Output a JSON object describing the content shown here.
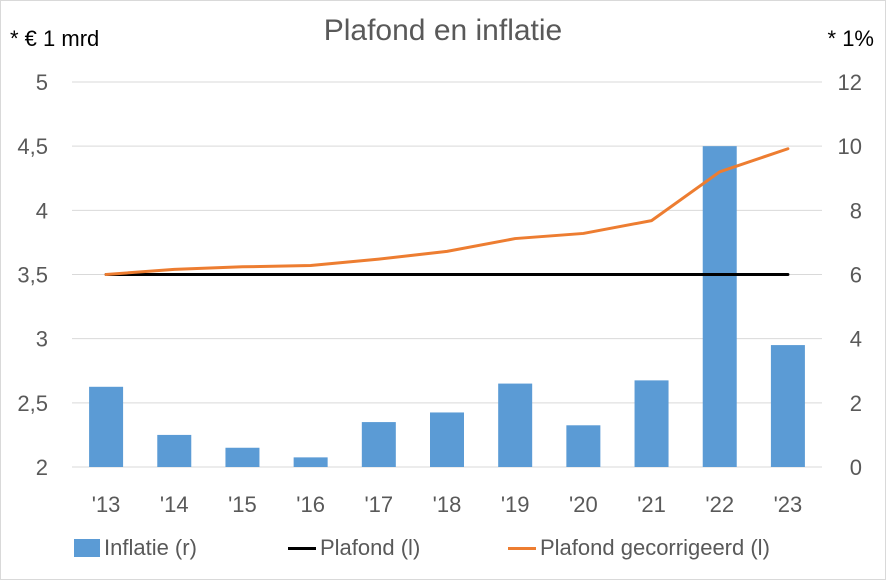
{
  "chart_data": {
    "type": "bar",
    "title": "Plafond en inflatie",
    "left_axis_label": "* € 1 mrd",
    "right_axis_label": "* 1%",
    "categories": [
      "'13",
      "'14",
      "'15",
      "'16",
      "'17",
      "'18",
      "'19",
      "'20",
      "'21",
      "'22",
      "'23"
    ],
    "left_axis": {
      "ylim": [
        2,
        5
      ],
      "ticks": [
        "2",
        "2,5",
        "3",
        "3,5",
        "4",
        "4,5",
        "5"
      ]
    },
    "right_axis": {
      "ylim": [
        0,
        12
      ],
      "ticks": [
        "0",
        "2",
        "4",
        "6",
        "8",
        "10",
        "12"
      ]
    },
    "grid": true,
    "legend_position": "bottom",
    "series": [
      {
        "name": "Inflatie (r)",
        "type": "bar",
        "axis": "right",
        "color": "#5b9bd5",
        "values": [
          2.5,
          1.0,
          0.6,
          0.3,
          1.4,
          1.7,
          2.6,
          1.3,
          2.7,
          10.0,
          3.8
        ]
      },
      {
        "name": "Plafond (l)",
        "type": "line",
        "axis": "left",
        "color": "#000000",
        "values": [
          3.5,
          3.5,
          3.5,
          3.5,
          3.5,
          3.5,
          3.5,
          3.5,
          3.5,
          3.5,
          3.5
        ]
      },
      {
        "name": "Plafond gecorrigeerd (l)",
        "type": "line",
        "axis": "left",
        "color": "#ed7d31",
        "values": [
          3.5,
          3.54,
          3.56,
          3.57,
          3.62,
          3.68,
          3.78,
          3.82,
          3.92,
          4.3,
          4.48
        ]
      }
    ]
  }
}
